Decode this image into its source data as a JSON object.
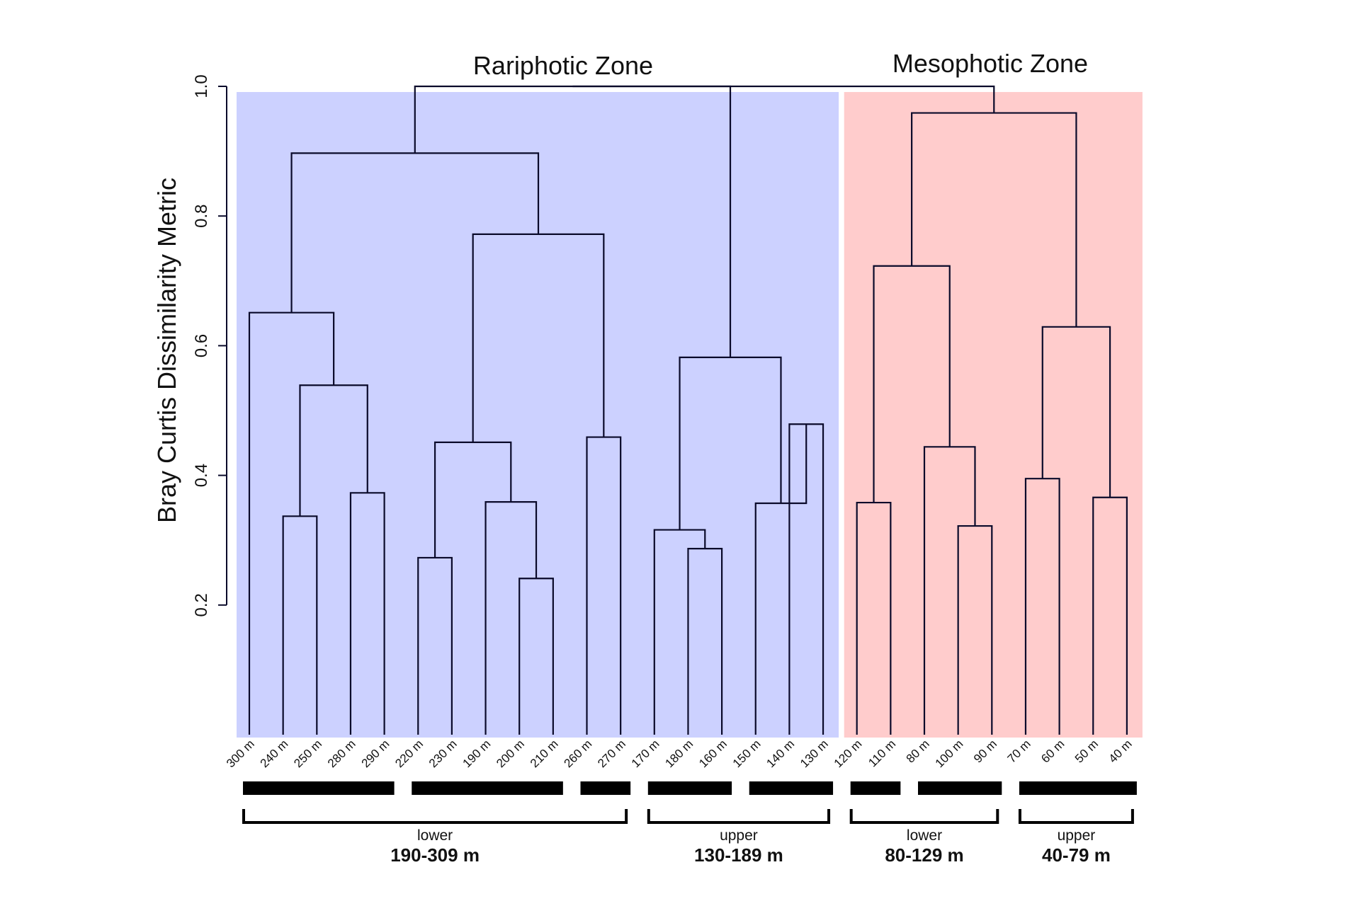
{
  "chart_data": {
    "type": "dendrogram",
    "ylabel": "Bray Curtis Dissimilarity Metric",
    "ylim": [
      0,
      1.0
    ],
    "yticks": [
      {
        "value": 0.2,
        "label": "0.2"
      },
      {
        "value": 0.4,
        "label": "0.4"
      },
      {
        "value": 0.6,
        "label": "0.6"
      },
      {
        "value": 0.8,
        "label": "0.8"
      },
      {
        "value": 1.0,
        "label": "1.0"
      }
    ],
    "leaves": [
      "300 m",
      "240 m",
      "250 m",
      "280 m",
      "290 m",
      "220 m",
      "230 m",
      "190 m",
      "200 m",
      "210 m",
      "260 m",
      "270 m",
      "170 m",
      "180 m",
      "160 m",
      "150 m",
      "140 m",
      "130 m",
      "120 m",
      "110 m",
      "80 m",
      "100 m",
      "90 m",
      "70 m",
      "60 m",
      "50 m",
      "40 m"
    ],
    "merges": [
      {
        "left": "L1",
        "right": "L2",
        "height": 0.337
      },
      {
        "left": "L3",
        "right": "L4",
        "height": 0.373
      },
      {
        "left": "M0",
        "right": "M1",
        "height": 0.539
      },
      {
        "left": "L0",
        "right": "M2",
        "height": 0.651
      },
      {
        "left": "L5",
        "right": "L6",
        "height": 0.273
      },
      {
        "left": "L8",
        "right": "L9",
        "height": 0.241
      },
      {
        "left": "L7",
        "right": "M5",
        "height": 0.359
      },
      {
        "left": "M4",
        "right": "M6",
        "height": 0.451
      },
      {
        "left": "L10",
        "right": "L11",
        "height": 0.459
      },
      {
        "left": "M7",
        "right": "M8",
        "height": 0.772
      },
      {
        "left": "M3",
        "right": "M9",
        "height": 0.897
      },
      {
        "left": "L13",
        "right": "L14",
        "height": 0.287
      },
      {
        "left": "L12",
        "right": "M11",
        "height": 0.316
      },
      {
        "left": "L16",
        "right": "L17",
        "height": 0.479
      },
      {
        "left": "L15",
        "right": "M13",
        "height": 0.357
      },
      {
        "left": "M12",
        "right": "M14",
        "height": 0.582
      },
      {
        "left": "M10",
        "right": "M15",
        "height": 1.0
      },
      {
        "left": "L18",
        "right": "L19",
        "height": 0.358
      },
      {
        "left": "L21",
        "right": "L22",
        "height": 0.322
      },
      {
        "left": "L20",
        "right": "M18",
        "height": 0.444
      },
      {
        "left": "M17",
        "right": "M19",
        "height": 0.723
      },
      {
        "left": "L23",
        "right": "L24",
        "height": 0.395
      },
      {
        "left": "L25",
        "right": "L26",
        "height": 0.366
      },
      {
        "left": "M21",
        "right": "M22",
        "height": 0.629
      },
      {
        "left": "M20",
        "right": "M23",
        "height": 0.959
      },
      {
        "left": "M16",
        "right": "M24",
        "height": 1.0
      }
    ],
    "zones": [
      {
        "label": "Rariphotic Zone",
        "color": "#ccd1ff",
        "from_leaf": 0,
        "to_leaf": 17
      },
      {
        "label": "Mesophotic Zone",
        "color": "#ffcccc",
        "from_leaf": 18,
        "to_leaf": 26
      }
    ],
    "bars": [
      {
        "from_leaf": 0,
        "to_leaf": 4
      },
      {
        "from_leaf": 5,
        "to_leaf": 9
      },
      {
        "from_leaf": 10,
        "to_leaf": 11
      },
      {
        "from_leaf": 12,
        "to_leaf": 14
      },
      {
        "from_leaf": 15,
        "to_leaf": 17
      },
      {
        "from_leaf": 18,
        "to_leaf": 19
      },
      {
        "from_leaf": 20,
        "to_leaf": 22
      },
      {
        "from_leaf": 23,
        "to_leaf": 26
      }
    ],
    "groups": [
      {
        "sub": "lower",
        "range": "190-309 m",
        "from_leaf": 0,
        "to_leaf": 11
      },
      {
        "sub": "upper",
        "range": "130-189 m",
        "from_leaf": 12,
        "to_leaf": 17
      },
      {
        "sub": "lower",
        "range": "80-129 m",
        "from_leaf": 18,
        "to_leaf": 22
      },
      {
        "sub": "upper",
        "range": "40-79 m",
        "from_leaf": 23,
        "to_leaf": 26
      }
    ],
    "line_color": "#0a0a2a"
  }
}
